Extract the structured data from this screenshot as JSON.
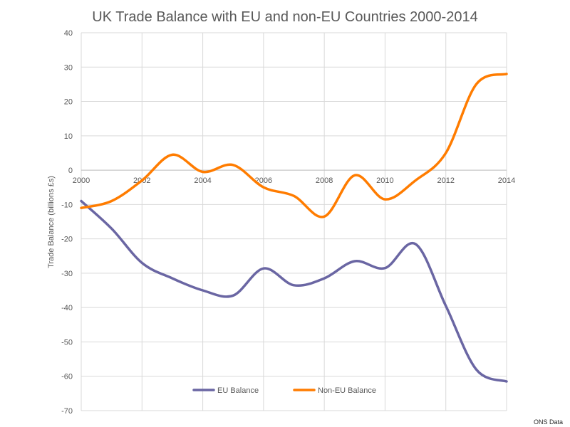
{
  "chart_data": {
    "type": "line",
    "title": "UK Trade Balance with EU and non-EU Countries 2000-2014",
    "xlabel": "",
    "ylabel": "Trade Balance (billions £s)",
    "xlim": [
      2000,
      2014
    ],
    "ylim": [
      -70,
      40
    ],
    "x_ticks": [
      2000,
      2002,
      2004,
      2006,
      2008,
      2010,
      2012,
      2014
    ],
    "y_ticks": [
      40,
      30,
      20,
      10,
      0,
      -10,
      -20,
      -30,
      -40,
      -50,
      -60,
      -70
    ],
    "grid": true,
    "legend_position": "bottom",
    "x": [
      2000,
      2001,
      2002,
      2003,
      2004,
      2005,
      2006,
      2007,
      2008,
      2009,
      2010,
      2011,
      2012,
      2013,
      2014
    ],
    "series": [
      {
        "name": "EU Balance",
        "color": "#6a66a3",
        "values": [
          -9,
          -17,
          -27,
          -31.5,
          -35,
          -36.5,
          -28.6,
          -33.5,
          -31.5,
          -26.5,
          -28.5,
          -21.5,
          -39.5,
          -58,
          -61.5
        ]
      },
      {
        "name": "Non-EU Balance",
        "color": "#ff7c00",
        "values": [
          -11,
          -9,
          -3,
          4.5,
          -0.5,
          1.5,
          -5,
          -7.5,
          -13.5,
          -1.5,
          -8.5,
          -3,
          5,
          25,
          28
        ]
      }
    ],
    "source_note": "ONS Data"
  }
}
